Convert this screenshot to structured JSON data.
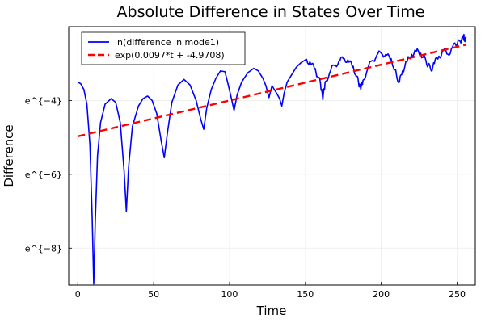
{
  "chart_data": {
    "type": "line",
    "title": "Absolute Difference in States Over Time",
    "xlabel": "Time",
    "ylabel": "Difference",
    "xlim": [
      -6,
      262
    ],
    "ylim": [
      -9.0,
      -2.0
    ],
    "x_ticks": [
      0,
      50,
      100,
      150,
      200,
      250
    ],
    "y_ticks": [
      {
        "value": -4,
        "label": "e^{−4}"
      },
      {
        "value": -6,
        "label": "e^{−6}"
      },
      {
        "value": -8,
        "label": "e^{−8}"
      }
    ],
    "grid": true,
    "legend_position": "top-left",
    "colors": {
      "series1": "#0000ff",
      "series2": "#ff0000",
      "grid": "#ececec",
      "axis": "#000000"
    },
    "series": [
      {
        "name": "ln(difference in mode1)",
        "style": "solid",
        "color": "#0000ff",
        "points": [
          [
            0,
            -3.5
          ],
          [
            2,
            -3.55
          ],
          [
            4,
            -3.7
          ],
          [
            6,
            -4.1
          ],
          [
            8,
            -5.2
          ],
          [
            9.5,
            -7.2
          ],
          [
            10.5,
            -8.97
          ],
          [
            11.5,
            -7.3
          ],
          [
            13,
            -5.5
          ],
          [
            15,
            -4.6
          ],
          [
            18,
            -4.1
          ],
          [
            22,
            -3.95
          ],
          [
            25,
            -4.05
          ],
          [
            28,
            -4.6
          ],
          [
            30.5,
            -5.9
          ],
          [
            32,
            -7.0
          ],
          [
            33.5,
            -5.8
          ],
          [
            36,
            -4.7
          ],
          [
            40,
            -4.15
          ],
          [
            43,
            -3.95
          ],
          [
            46,
            -3.88
          ],
          [
            49,
            -4.0
          ],
          [
            52,
            -4.35
          ],
          [
            55,
            -5.1
          ],
          [
            57,
            -5.55
          ],
          [
            59,
            -4.9
          ],
          [
            62,
            -4.05
          ],
          [
            66,
            -3.58
          ],
          [
            70,
            -3.43
          ],
          [
            74,
            -3.58
          ],
          [
            78,
            -4.0
          ],
          [
            81,
            -4.5
          ],
          [
            83,
            -4.78
          ],
          [
            85,
            -4.2
          ],
          [
            88,
            -3.7
          ],
          [
            91,
            -3.4
          ],
          [
            94,
            -3.2
          ],
          [
            97,
            -3.22
          ],
          [
            99,
            -3.55
          ],
          [
            101,
            -3.9
          ],
          [
            103,
            -4.27
          ],
          [
            105,
            -3.85
          ],
          [
            108,
            -3.5
          ],
          [
            112,
            -3.25
          ],
          [
            116,
            -3.13
          ],
          [
            119,
            -3.2
          ],
          [
            122,
            -3.4
          ],
          [
            124,
            -3.6
          ],
          [
            126,
            -3.92
          ],
          [
            128,
            -3.6
          ],
          [
            131,
            -3.8
          ],
          [
            133,
            -3.95
          ],
          [
            134.5,
            -4.15
          ],
          [
            136,
            -3.8
          ],
          [
            138,
            -3.5
          ],
          [
            141,
            -3.3
          ],
          [
            144,
            -3.1
          ],
          [
            147,
            -2.98
          ],
          [
            150,
            -2.9
          ],
          [
            153,
            -2.95
          ],
          [
            156,
            -3.15
          ],
          [
            158,
            -3.35
          ],
          [
            160,
            -3.55
          ],
          [
            161.5,
            -3.98
          ],
          [
            163,
            -3.5
          ],
          [
            166,
            -3.25
          ],
          [
            169,
            -3.05
          ],
          [
            172,
            -2.95
          ],
          [
            175,
            -2.87
          ],
          [
            178,
            -2.9
          ],
          [
            181,
            -3.1
          ],
          [
            183,
            -3.3
          ],
          [
            185,
            -3.5
          ],
          [
            186.5,
            -3.7
          ],
          [
            188,
            -3.45
          ],
          [
            191,
            -3.15
          ],
          [
            194,
            -2.92
          ],
          [
            197,
            -2.78
          ],
          [
            200,
            -2.72
          ],
          [
            203,
            -2.75
          ],
          [
            206,
            -2.9
          ],
          [
            208,
            -3.1
          ],
          [
            210,
            -3.3
          ],
          [
            212,
            -3.5
          ],
          [
            214,
            -3.2
          ],
          [
            217,
            -2.95
          ],
          [
            220,
            -2.75
          ],
          [
            223,
            -2.68
          ],
          [
            226,
            -2.72
          ],
          [
            229,
            -2.85
          ],
          [
            231,
            -3.05
          ],
          [
            233,
            -3.2
          ],
          [
            235,
            -3.0
          ],
          [
            238,
            -2.8
          ],
          [
            241,
            -2.65
          ],
          [
            244,
            -2.75
          ],
          [
            247,
            -2.55
          ],
          [
            250,
            -2.5
          ],
          [
            252,
            -2.4
          ],
          [
            254,
            -2.25
          ],
          [
            255,
            -2.35
          ],
          [
            256,
            -2.3
          ]
        ]
      },
      {
        "name": "exp(0.0097*t + -4.9708)",
        "style": "dashed",
        "color": "#ff0000",
        "slope": 0.0097,
        "intercept": -4.9708,
        "x_range": [
          0,
          256
        ]
      }
    ]
  }
}
